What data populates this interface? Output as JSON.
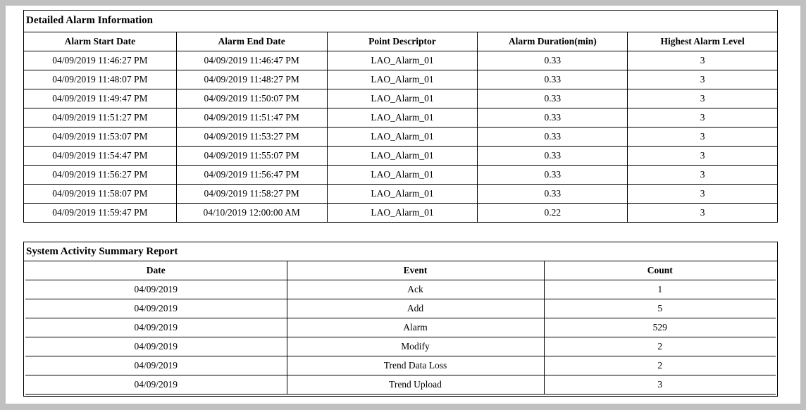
{
  "alarm_table": {
    "title": "Detailed Alarm Information",
    "columns": [
      "Alarm Start Date",
      "Alarm End Date",
      "Point Descriptor",
      "Alarm Duration(min)",
      "Highest Alarm Level"
    ],
    "rows": [
      [
        "04/09/2019 11:46:27 PM",
        "04/09/2019 11:46:47 PM",
        "LAO_Alarm_01",
        "0.33",
        "3"
      ],
      [
        "04/09/2019 11:48:07 PM",
        "04/09/2019 11:48:27 PM",
        "LAO_Alarm_01",
        "0.33",
        "3"
      ],
      [
        "04/09/2019 11:49:47 PM",
        "04/09/2019 11:50:07 PM",
        "LAO_Alarm_01",
        "0.33",
        "3"
      ],
      [
        "04/09/2019 11:51:27 PM",
        "04/09/2019 11:51:47 PM",
        "LAO_Alarm_01",
        "0.33",
        "3"
      ],
      [
        "04/09/2019 11:53:07 PM",
        "04/09/2019 11:53:27 PM",
        "LAO_Alarm_01",
        "0.33",
        "3"
      ],
      [
        "04/09/2019 11:54:47 PM",
        "04/09/2019 11:55:07 PM",
        "LAO_Alarm_01",
        "0.33",
        "3"
      ],
      [
        "04/09/2019 11:56:27 PM",
        "04/09/2019 11:56:47 PM",
        "LAO_Alarm_01",
        "0.33",
        "3"
      ],
      [
        "04/09/2019 11:58:07 PM",
        "04/09/2019 11:58:27 PM",
        "LAO_Alarm_01",
        "0.33",
        "3"
      ],
      [
        "04/09/2019 11:59:47 PM",
        "04/10/2019 12:00:00 AM",
        "LAO_Alarm_01",
        "0.22",
        "3"
      ]
    ]
  },
  "activity_table": {
    "title": "System Activity Summary Report",
    "columns": [
      "Date",
      "Event",
      "Count"
    ],
    "rows": [
      [
        "04/09/2019",
        "Ack",
        "1"
      ],
      [
        "04/09/2019",
        "Add",
        "5"
      ],
      [
        "04/09/2019",
        "Alarm",
        "529"
      ],
      [
        "04/09/2019",
        "Modify",
        "2"
      ],
      [
        "04/09/2019",
        "Trend Data Loss",
        "2"
      ],
      [
        "04/09/2019",
        "Trend Upload",
        "3"
      ]
    ]
  }
}
